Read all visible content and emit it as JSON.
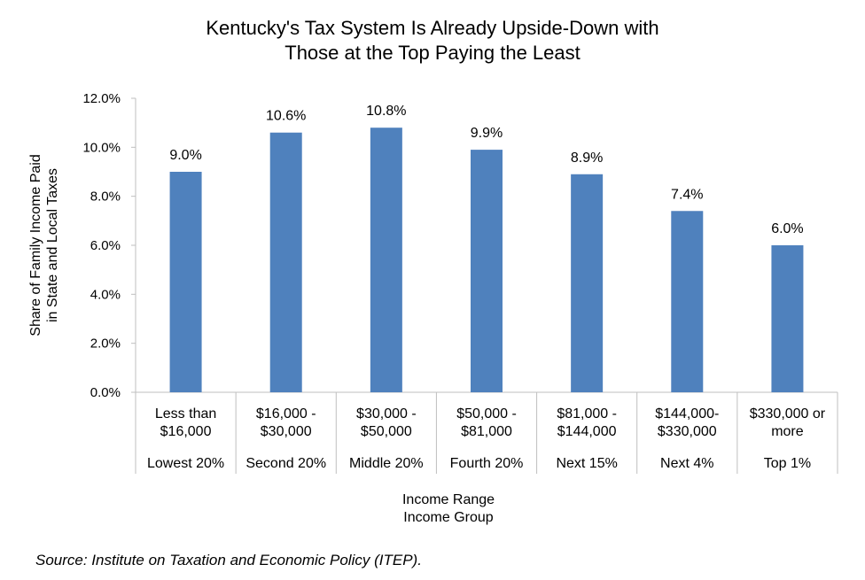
{
  "chart_data": {
    "type": "bar",
    "title_lines": [
      "Kentucky's Tax System Is Already Upside-Down with",
      "Those at the Top Paying the Least"
    ],
    "ylabel_lines": [
      "Share of Family Income Paid",
      "in State and Local Taxes"
    ],
    "xlabel_lines": [
      "Income Range",
      "Income Group"
    ],
    "ylim": [
      0,
      12
    ],
    "yticks": [
      0,
      2,
      4,
      6,
      8,
      10,
      12
    ],
    "ytick_labels": [
      "0.0%",
      "2.0%",
      "4.0%",
      "6.0%",
      "8.0%",
      "10.0%",
      "12.0%"
    ],
    "categories": [
      {
        "range": [
          "Less than",
          "$16,000"
        ],
        "group": "Lowest 20%"
      },
      {
        "range": [
          "$16,000 -",
          "$30,000"
        ],
        "group": "Second 20%"
      },
      {
        "range": [
          "$30,000 -",
          "$50,000"
        ],
        "group": "Middle 20%"
      },
      {
        "range": [
          "$50,000 -",
          "$81,000"
        ],
        "group": "Fourth 20%"
      },
      {
        "range": [
          "$81,000 -",
          "$144,000"
        ],
        "group": "Next 15%"
      },
      {
        "range": [
          "$144,000-",
          "$330,000"
        ],
        "group": "Next 4%"
      },
      {
        "range": [
          "$330,000 or",
          "more"
        ],
        "group": "Top 1%"
      }
    ],
    "values": [
      9.0,
      10.6,
      10.8,
      9.9,
      8.9,
      7.4,
      6.0
    ],
    "data_labels": [
      "9.0%",
      "10.6%",
      "10.8%",
      "9.9%",
      "8.9%",
      "7.4%",
      "6.0%"
    ],
    "bar_color": "#4F81BD",
    "axis_color": "#BFBFBF",
    "grid": false,
    "legend": "none"
  },
  "source": "Source: Institute on Taxation and Economic Policy (ITEP)."
}
